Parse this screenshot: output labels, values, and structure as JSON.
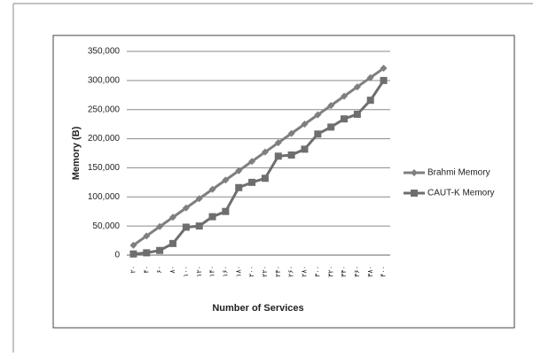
{
  "chart_data": {
    "type": "line",
    "y_label": "Memory (B)",
    "x_label": "Number of Services",
    "categories": [
      "۲۰",
      "۴۰",
      "۶۰",
      "۸۰",
      "۱۰۰",
      "۱۲۰",
      "۱۴۰",
      "۱۶۰",
      "۱۸۰",
      "۲۰۰",
      "۲۲۰",
      "۲۴۰",
      "۲۶۰",
      "۲۸۰",
      "۳۰۰",
      "۳۲۰",
      "۳۴۰",
      "۳۶۰",
      "۳۸۰",
      "۴۰۰"
    ],
    "series": [
      {
        "name": "Brahmi Memory",
        "color": "#7f7f7f",
        "marker": "diamond",
        "values": [
          17000,
          33000,
          49000,
          65000,
          81000,
          97000,
          113000,
          129000,
          145000,
          161000,
          177000,
          193000,
          209000,
          225000,
          241000,
          257000,
          273000,
          289000,
          305000,
          321000
        ]
      },
      {
        "name": "CAUT-K Memory",
        "color": "#6e6e6e",
        "marker": "square",
        "values": [
          2000,
          4000,
          8000,
          20000,
          48000,
          50000,
          66000,
          75000,
          116000,
          125000,
          132000,
          170000,
          172000,
          182000,
          208000,
          220000,
          234000,
          242000,
          266000,
          300000
        ]
      }
    ],
    "ylim": [
      0,
      350000
    ],
    "yticks": [
      0,
      {
        "value": 50000,
        "label": "50,000"
      },
      {
        "value": 100000,
        "label": "100,000"
      },
      {
        "value": 150000,
        "label": "150,000"
      },
      {
        "value": 200000,
        "label": "200,000"
      },
      {
        "value": 250000,
        "label": "250,000"
      },
      {
        "value": 300000,
        "label": "300,000"
      },
      {
        "value": 350000,
        "label": "350,000"
      }
    ],
    "grid": true,
    "legend": "right"
  }
}
